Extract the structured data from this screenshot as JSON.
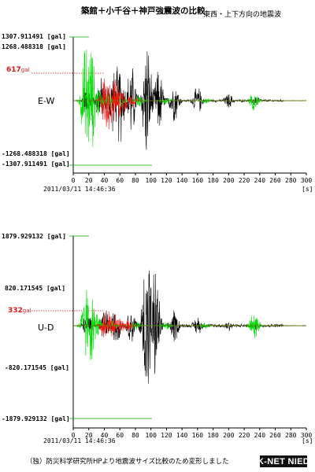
{
  "title": "築館＋小千谷＋神戸強震波の比較",
  "subtitle": "東西・上下方向の地震波",
  "caption": "（独）防災科学研究所HPより地震波サイズ比較のため変形しました",
  "logo_text": "K-NET NIED",
  "chart_data": [
    {
      "type": "line",
      "component": "E-W",
      "start_time": "2011/03/11 14:46:36",
      "xunit": "[s]",
      "xlim": [
        0,
        300
      ],
      "xticks": [
        "0",
        "20",
        "40",
        "60",
        "80",
        "100",
        "120",
        "140",
        "160",
        "180",
        "200",
        "220",
        "240",
        "260",
        "280",
        "300"
      ],
      "ylabels_top": [
        "1307.911491 [gal]",
        "1268.488318 [gal]"
      ],
      "ylabels_bottom": [
        "-1268.488318 [gal]",
        "-1307.911491 [gal]"
      ],
      "ref_label": "617",
      "ref_unit": "gal",
      "ylim": [
        -1307.911491,
        1307.911491
      ],
      "series": [
        {
          "color": "#000000",
          "peak_times": [
            18,
            35,
            50,
            60,
            75,
            95,
            110,
            130,
            160,
            200,
            235
          ],
          "peak_values": [
            300,
            550,
            700,
            950,
            850,
            -1300,
            650,
            450,
            300,
            150,
            120
          ]
        },
        {
          "color": "#00dd00",
          "peak_times": [
            17,
            22,
            30,
            45,
            60,
            85,
            120,
            170,
            233
          ],
          "peak_values": [
            1268,
            -1268,
            400,
            220,
            180,
            120,
            90,
            60,
            200
          ]
        },
        {
          "color": "#ff1010",
          "peak_times": [
            42,
            47,
            52,
            58,
            65,
            75
          ],
          "peak_values": [
            617,
            -617,
            500,
            420,
            280,
            150
          ]
        }
      ]
    },
    {
      "type": "line",
      "component": "U-D",
      "start_time": "2011/03/11 14:46:36",
      "xunit": "[s]",
      "xlim": [
        0,
        300
      ],
      "xticks": [
        "0",
        "20",
        "40",
        "60",
        "80",
        "100",
        "120",
        "140",
        "160",
        "180",
        "200",
        "220",
        "240",
        "260",
        "280",
        "300"
      ],
      "ylabels_top": [
        "1879.929132 [gal]",
        "820.171545 [gal]"
      ],
      "ylabels_bottom": [
        "-820.171545 [gal]",
        "-1879.929132 [gal]"
      ],
      "ref_label": "332",
      "ref_unit": "gal",
      "ylim": [
        -1879.929132,
        1879.929132
      ],
      "series": [
        {
          "color": "#000000",
          "peak_times": [
            18,
            40,
            55,
            75,
            95,
            105,
            130,
            160,
            200,
            235
          ],
          "peak_values": [
            250,
            400,
            420,
            380,
            1879,
            -1300,
            350,
            200,
            120,
            90
          ]
        },
        {
          "color": "#00dd00",
          "peak_times": [
            17,
            22,
            30,
            50,
            80,
            120,
            170,
            233
          ],
          "peak_values": [
            820,
            -820,
            300,
            180,
            120,
            80,
            60,
            280
          ]
        },
        {
          "color": "#ff1010",
          "peak_times": [
            42,
            47,
            52,
            60,
            70
          ],
          "peak_values": [
            332,
            -332,
            280,
            200,
            120
          ]
        }
      ]
    }
  ]
}
